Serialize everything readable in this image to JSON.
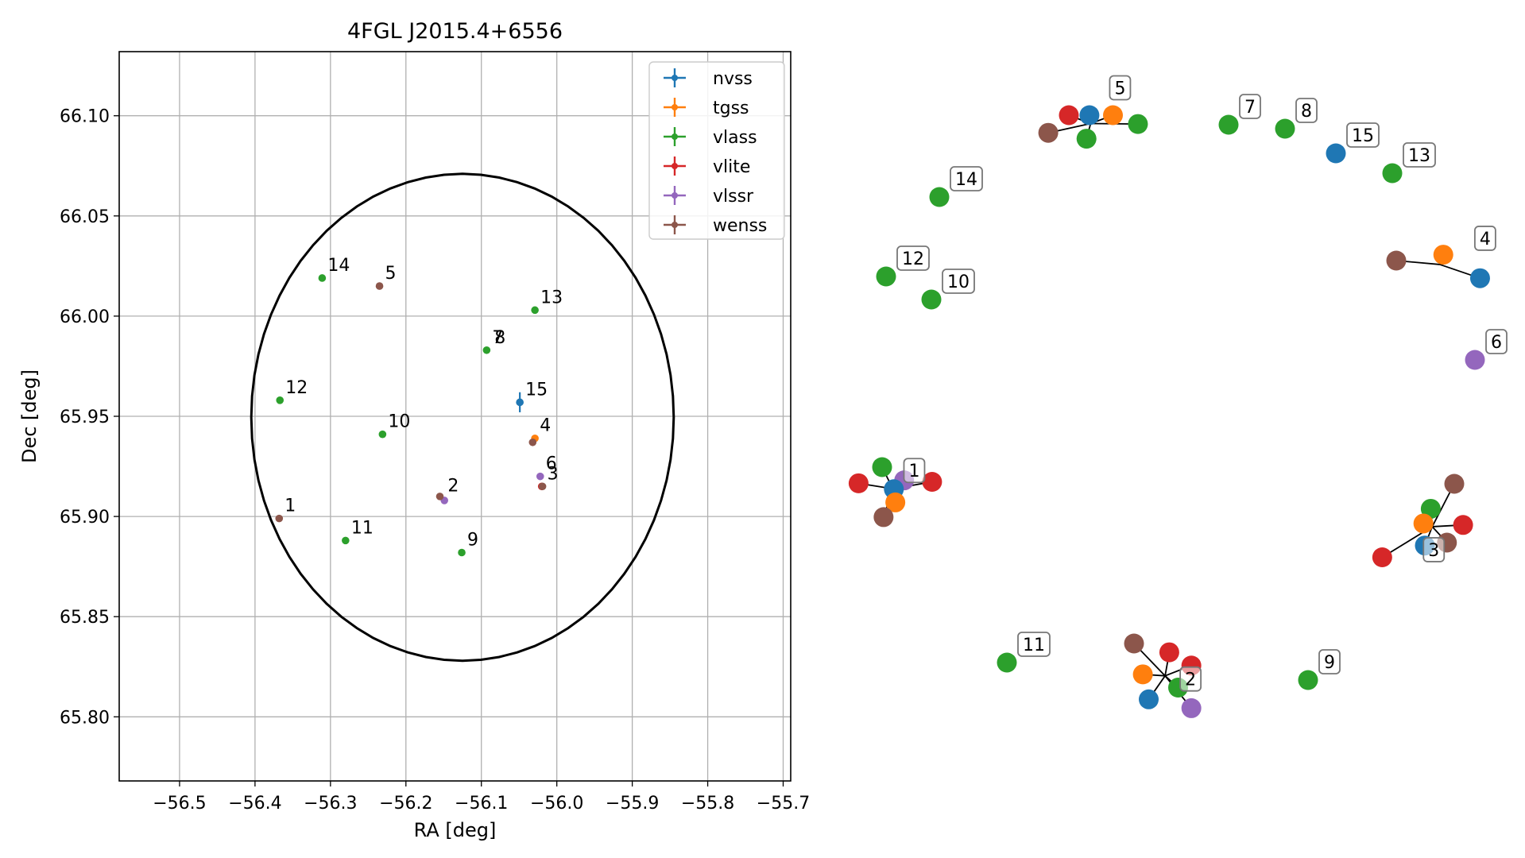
{
  "chart_data": [
    {
      "type": "scatter",
      "title": "4FGL J2015.4+6556",
      "xlabel": "RA [deg]",
      "ylabel": "Dec [deg]",
      "xlim": [
        -56.58,
        -55.69
      ],
      "ylim": [
        65.768,
        66.132
      ],
      "x_ticks": [
        -56.5,
        -56.4,
        -56.3,
        -56.2,
        -56.1,
        -56.0,
        -55.9,
        -55.8,
        -55.7
      ],
      "x_tick_labels": [
        "−56.5",
        "−56.4",
        "−56.3",
        "−56.2",
        "−56.1",
        "−56.0",
        "−55.9",
        "−55.8",
        "−55.7"
      ],
      "y_ticks": [
        65.8,
        65.85,
        65.9,
        65.95,
        66.0,
        66.05,
        66.1
      ],
      "y_tick_labels": [
        "65.80",
        "65.85",
        "65.90",
        "65.95",
        "66.00",
        "66.05",
        "66.10"
      ],
      "grid": true,
      "legend_position": "top-right",
      "error_ellipse": {
        "center": [
          -56.125,
          65.9495
        ],
        "semi_axis_ra": 0.28,
        "semi_axis_dec": 0.1215
      },
      "series": [
        {
          "name": "nvss",
          "color": "#1f77b4",
          "points": [
            {
              "x": -56.049,
              "y": 65.957,
              "yerr": 0.005
            }
          ]
        },
        {
          "name": "tgss",
          "color": "#ff7f0e",
          "points": [
            {
              "x": -56.029,
              "y": 65.939
            }
          ]
        },
        {
          "name": "vlass",
          "color": "#2ca02c",
          "points": [
            {
              "x": -56.311,
              "y": 66.019
            },
            {
              "x": -56.029,
              "y": 66.003
            },
            {
              "x": -56.093,
              "y": 65.983
            },
            {
              "x": -56.367,
              "y": 65.958
            },
            {
              "x": -56.231,
              "y": 65.941
            },
            {
              "x": -56.28,
              "y": 65.888
            },
            {
              "x": -56.126,
              "y": 65.882
            }
          ]
        },
        {
          "name": "vlite",
          "color": "#d62728",
          "points": [
            {
              "x": -56.02,
              "y": 65.915
            }
          ]
        },
        {
          "name": "vlssr",
          "color": "#9467bd",
          "points": [
            {
              "x": -56.022,
              "y": 65.92
            },
            {
              "x": -56.149,
              "y": 65.908
            }
          ]
        },
        {
          "name": "wenss",
          "color": "#8c564b",
          "points": [
            {
              "x": -56.235,
              "y": 66.015
            },
            {
              "x": -56.032,
              "y": 65.937
            },
            {
              "x": -56.155,
              "y": 65.91
            },
            {
              "x": -56.019,
              "y": 65.915
            },
            {
              "x": -56.368,
              "y": 65.899
            }
          ]
        }
      ],
      "annotations": [
        {
          "text": "14",
          "x": -56.311,
          "y": 66.019
        },
        {
          "text": "5",
          "x": -56.235,
          "y": 66.015
        },
        {
          "text": "13",
          "x": -56.029,
          "y": 66.003
        },
        {
          "text": "7",
          "x": -56.093,
          "y": 65.983
        },
        {
          "text": "8",
          "x": -56.09,
          "y": 65.983
        },
        {
          "text": "12",
          "x": -56.367,
          "y": 65.958
        },
        {
          "text": "15",
          "x": -56.049,
          "y": 65.957
        },
        {
          "text": "10",
          "x": -56.231,
          "y": 65.941
        },
        {
          "text": "4",
          "x": -56.03,
          "y": 65.939
        },
        {
          "text": "6",
          "x": -56.022,
          "y": 65.92
        },
        {
          "text": "3",
          "x": -56.02,
          "y": 65.915
        },
        {
          "text": "2",
          "x": -56.152,
          "y": 65.909
        },
        {
          "text": "1",
          "x": -56.368,
          "y": 65.899
        },
        {
          "text": "11",
          "x": -56.28,
          "y": 65.888
        },
        {
          "text": "9",
          "x": -56.126,
          "y": 65.882
        }
      ]
    },
    {
      "type": "scatter",
      "title": "",
      "description_panel": "zoomed source clusters (unlabeled axes)",
      "groups": [
        {
          "label": "5",
          "points": [
            {
              "survey": "vlite",
              "x": 0.0,
              "y": 0.0
            },
            {
              "survey": "tgss",
              "x": 0.03,
              "y": 0.0
            },
            {
              "survey": "nvss",
              "x": 0.014,
              "y": 0.0
            },
            {
              "survey": "vlass",
              "x": 0.047,
              "y": -0.006
            },
            {
              "survey": "vlass",
              "x": 0.012,
              "y": -0.016
            },
            {
              "survey": "wenss",
              "x": -0.014,
              "y": -0.012
            }
          ]
        },
        {
          "label": "1",
          "points": [
            {
              "survey": "vlass",
              "x": 0.0,
              "y": 0.0
            },
            {
              "survey": "vlssr",
              "x": 0.015,
              "y": -0.009
            },
            {
              "survey": "vlite",
              "x": -0.016,
              "y": -0.011
            },
            {
              "survey": "vlite",
              "x": 0.034,
              "y": -0.01
            },
            {
              "survey": "nvss",
              "x": 0.008,
              "y": -0.015
            },
            {
              "survey": "tgss",
              "x": 0.009,
              "y": -0.024
            },
            {
              "survey": "wenss",
              "x": 0.001,
              "y": -0.034
            }
          ]
        },
        {
          "label": "3",
          "points": [
            {
              "survey": "wenss",
              "x": 0.0,
              "y": 0.0
            },
            {
              "survey": "vlass",
              "x": -0.016,
              "y": -0.017
            },
            {
              "survey": "vlite",
              "x": 0.006,
              "y": -0.028
            },
            {
              "survey": "tgss",
              "x": -0.021,
              "y": -0.027
            },
            {
              "survey": "wenss",
              "x": -0.005,
              "y": -0.04
            },
            {
              "survey": "nvss",
              "x": -0.02,
              "y": -0.042
            },
            {
              "survey": "vlite",
              "x": -0.049,
              "y": -0.05
            }
          ]
        },
        {
          "label": "2",
          "points": [
            {
              "survey": "wenss",
              "x": 0.0,
              "y": 0.0
            },
            {
              "survey": "vlite",
              "x": 0.024,
              "y": -0.006
            },
            {
              "survey": "vlite",
              "x": 0.039,
              "y": -0.015
            },
            {
              "survey": "tgss",
              "x": 0.006,
              "y": -0.021
            },
            {
              "survey": "vlass",
              "x": 0.03,
              "y": -0.03
            },
            {
              "survey": "nvss",
              "x": 0.01,
              "y": -0.038
            },
            {
              "survey": "vlssr",
              "x": 0.039,
              "y": -0.044
            }
          ]
        },
        {
          "label": "4",
          "points": [
            {
              "survey": "wenss",
              "x": 0.0,
              "y": 0.0
            },
            {
              "survey": "tgss",
              "x": 0.032,
              "y": 0.004
            },
            {
              "survey": "nvss",
              "x": 0.057,
              "y": -0.012
            }
          ]
        }
      ],
      "singles": [
        {
          "label": "7",
          "survey": "vlass"
        },
        {
          "label": "8",
          "survey": "vlass"
        },
        {
          "label": "15",
          "survey": "nvss"
        },
        {
          "label": "13",
          "survey": "vlass"
        },
        {
          "label": "14",
          "survey": "vlass"
        },
        {
          "label": "12",
          "survey": "vlass"
        },
        {
          "label": "10",
          "survey": "vlass"
        },
        {
          "label": "6",
          "survey": "vlssr"
        },
        {
          "label": "11",
          "survey": "vlass"
        },
        {
          "label": "9",
          "survey": "vlass"
        }
      ]
    }
  ]
}
